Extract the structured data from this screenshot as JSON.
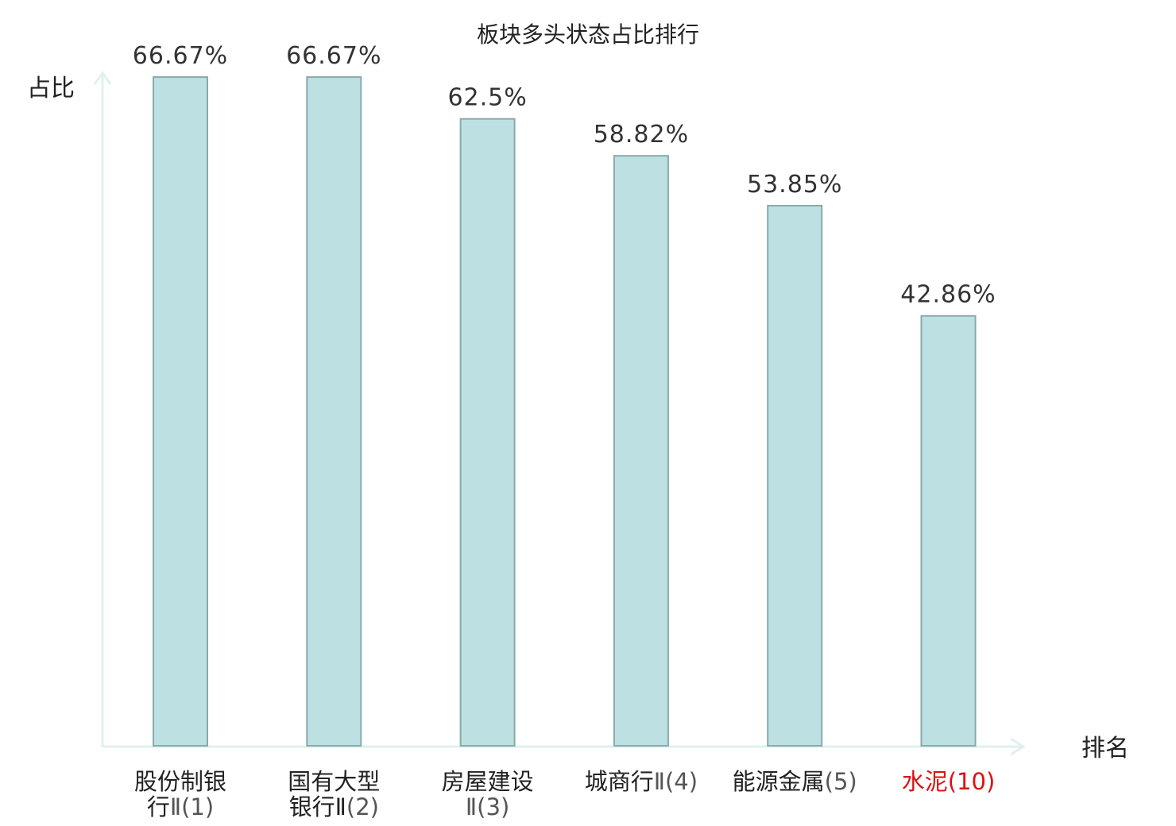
{
  "chart_data": {
    "type": "bar",
    "title": "板块多头状态占比排行",
    "ylabel": "占比",
    "xlabel": "排名",
    "ylim": [
      0,
      70
    ],
    "grid": false,
    "categories": [
      {
        "lines": [
          "股份制银",
          "行Ⅱ(1)"
        ],
        "name_part_count": [
          4,
          1
        ],
        "highlight": false
      },
      {
        "lines": [
          "国有大型",
          "银行Ⅱ(2)"
        ],
        "name_part_count": [
          4,
          3
        ],
        "highlight": false
      },
      {
        "lines": [
          "房屋建设",
          "Ⅱ(3)"
        ],
        "name_part_count": [
          4,
          0
        ],
        "highlight": false
      },
      {
        "lines": [
          "城商行Ⅱ(4)"
        ],
        "name_part_count": [
          3
        ],
        "highlight": false
      },
      {
        "lines": [
          "能源金属(5)"
        ],
        "name_part_count": [
          4
        ],
        "highlight": false
      },
      {
        "lines": [
          "水泥(10)"
        ],
        "name_part_count": [
          2
        ],
        "highlight": true
      }
    ],
    "values": [
      66.67,
      66.67,
      62.5,
      58.82,
      53.85,
      42.86
    ],
    "value_labels": [
      "66.67%",
      "66.67%",
      "62.5%",
      "58.82%",
      "53.85%",
      "42.86%"
    ],
    "colors": {
      "bar_fill": "#bde1e3",
      "bar_stroke": "#8aaaaa",
      "axis": "#dff1ee",
      "highlight_text": "#dd1111"
    }
  }
}
